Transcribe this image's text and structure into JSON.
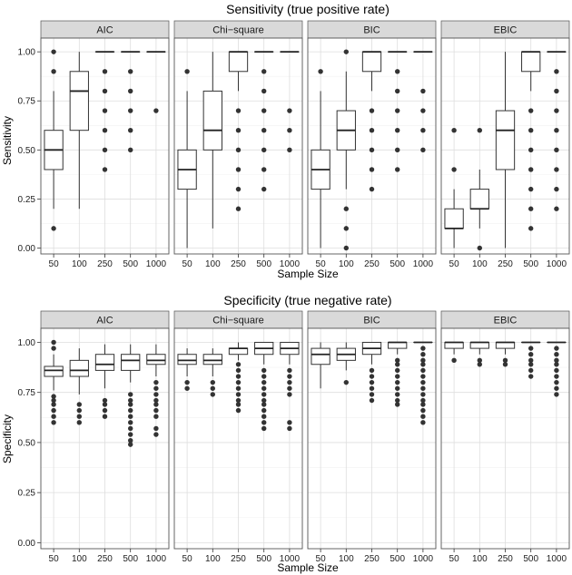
{
  "chart_data": [
    {
      "type": "boxplot",
      "title": "Sensitivity (true positive rate)",
      "xlabel": "Sample Size",
      "ylabel": "Sensitivity",
      "ylim": [
        -0.03,
        1.07
      ],
      "yticks": [
        "0.00",
        "0.25",
        "0.50",
        "0.75",
        "1.00"
      ],
      "categories": [
        "50",
        "100",
        "250",
        "500",
        "1000"
      ],
      "grid": true,
      "facets": [
        {
          "label": "AIC",
          "boxes": [
            {
              "q1": 0.4,
              "median": 0.5,
              "q3": 0.6,
              "lo": 0.2,
              "hi": 0.8,
              "outliers": [
                0.1,
                0.9,
                1.0
              ]
            },
            {
              "q1": 0.6,
              "median": 0.8,
              "q3": 0.9,
              "lo": 0.2,
              "hi": 1.0,
              "outliers": []
            },
            {
              "q1": 1.0,
              "median": 1.0,
              "q3": 1.0,
              "lo": 1.0,
              "hi": 1.0,
              "outliers": [
                0.4,
                0.5,
                0.6,
                0.7,
                0.8,
                0.9
              ]
            },
            {
              "q1": 1.0,
              "median": 1.0,
              "q3": 1.0,
              "lo": 1.0,
              "hi": 1.0,
              "outliers": [
                0.5,
                0.6,
                0.7,
                0.8,
                0.9
              ]
            },
            {
              "q1": 1.0,
              "median": 1.0,
              "q3": 1.0,
              "lo": 1.0,
              "hi": 1.0,
              "outliers": [
                0.7
              ]
            }
          ]
        },
        {
          "label": "Chi−square",
          "boxes": [
            {
              "q1": 0.3,
              "median": 0.4,
              "q3": 0.5,
              "lo": 0.0,
              "hi": 0.8,
              "outliers": [
                0.9
              ]
            },
            {
              "q1": 0.5,
              "median": 0.6,
              "q3": 0.8,
              "lo": 0.1,
              "hi": 1.0,
              "outliers": []
            },
            {
              "q1": 0.9,
              "median": 1.0,
              "q3": 1.0,
              "lo": 0.8,
              "hi": 1.0,
              "outliers": [
                0.2,
                0.3,
                0.4,
                0.5,
                0.6,
                0.7
              ]
            },
            {
              "q1": 1.0,
              "median": 1.0,
              "q3": 1.0,
              "lo": 1.0,
              "hi": 1.0,
              "outliers": [
                0.3,
                0.4,
                0.5,
                0.6,
                0.7,
                0.8,
                0.9
              ]
            },
            {
              "q1": 1.0,
              "median": 1.0,
              "q3": 1.0,
              "lo": 1.0,
              "hi": 1.0,
              "outliers": [
                0.5,
                0.6,
                0.7
              ]
            }
          ]
        },
        {
          "label": "BIC",
          "boxes": [
            {
              "q1": 0.3,
              "median": 0.4,
              "q3": 0.5,
              "lo": 0.0,
              "hi": 0.8,
              "outliers": [
                0.9
              ]
            },
            {
              "q1": 0.5,
              "median": 0.6,
              "q3": 0.7,
              "lo": 0.3,
              "hi": 0.9,
              "outliers": [
                0.0,
                0.1,
                0.2,
                1.0
              ]
            },
            {
              "q1": 0.9,
              "median": 1.0,
              "q3": 1.0,
              "lo": 0.8,
              "hi": 1.0,
              "outliers": [
                0.3,
                0.4,
                0.5,
                0.6,
                0.7
              ]
            },
            {
              "q1": 1.0,
              "median": 1.0,
              "q3": 1.0,
              "lo": 1.0,
              "hi": 1.0,
              "outliers": [
                0.4,
                0.5,
                0.6,
                0.7,
                0.8,
                0.9
              ]
            },
            {
              "q1": 1.0,
              "median": 1.0,
              "q3": 1.0,
              "lo": 1.0,
              "hi": 1.0,
              "outliers": [
                0.5,
                0.6,
                0.7,
                0.8
              ]
            }
          ]
        },
        {
          "label": "EBIC",
          "boxes": [
            {
              "q1": 0.1,
              "median": 0.1,
              "q3": 0.2,
              "lo": 0.0,
              "hi": 0.3,
              "outliers": [
                0.4,
                0.6
              ]
            },
            {
              "q1": 0.2,
              "median": 0.2,
              "q3": 0.3,
              "lo": 0.1,
              "hi": 0.4,
              "outliers": [
                0.0,
                0.6
              ]
            },
            {
              "q1": 0.4,
              "median": 0.6,
              "q3": 0.7,
              "lo": 0.0,
              "hi": 1.0,
              "outliers": []
            },
            {
              "q1": 0.9,
              "median": 1.0,
              "q3": 1.0,
              "lo": 0.8,
              "hi": 1.0,
              "outliers": [
                0.1,
                0.2,
                0.3,
                0.4,
                0.5,
                0.6,
                0.7
              ]
            },
            {
              "q1": 1.0,
              "median": 1.0,
              "q3": 1.0,
              "lo": 1.0,
              "hi": 1.0,
              "outliers": [
                0.2,
                0.3,
                0.4,
                0.5,
                0.6,
                0.7,
                0.8,
                0.9
              ]
            }
          ]
        }
      ]
    },
    {
      "type": "boxplot",
      "title": "Specificity (true negative rate)",
      "xlabel": "Sample Size",
      "ylabel": "Specificity",
      "ylim": [
        -0.03,
        1.07
      ],
      "yticks": [
        "0.00",
        "0.25",
        "0.50",
        "0.75",
        "1.00"
      ],
      "categories": [
        "50",
        "100",
        "250",
        "500",
        "1000"
      ],
      "grid": true,
      "facets": [
        {
          "label": "AIC",
          "boxes": [
            {
              "q1": 0.83,
              "median": 0.86,
              "q3": 0.88,
              "lo": 0.76,
              "hi": 0.94,
              "outliers": [
                0.6,
                0.63,
                0.66,
                0.69,
                0.71,
                0.73,
                0.97,
                1.0
              ]
            },
            {
              "q1": 0.83,
              "median": 0.86,
              "q3": 0.91,
              "lo": 0.74,
              "hi": 0.97,
              "outliers": [
                0.6,
                0.63,
                0.66,
                0.69
              ]
            },
            {
              "q1": 0.86,
              "median": 0.89,
              "q3": 0.94,
              "lo": 0.77,
              "hi": 0.99,
              "outliers": [
                0.63,
                0.66,
                0.69,
                0.71
              ]
            },
            {
              "q1": 0.86,
              "median": 0.91,
              "q3": 0.94,
              "lo": 0.8,
              "hi": 0.99,
              "outliers": [
                0.49,
                0.51,
                0.54,
                0.57,
                0.6,
                0.63,
                0.66,
                0.69,
                0.71,
                0.74
              ]
            },
            {
              "q1": 0.89,
              "median": 0.91,
              "q3": 0.94,
              "lo": 0.83,
              "hi": 0.99,
              "outliers": [
                0.54,
                0.57,
                0.63,
                0.66,
                0.69,
                0.71,
                0.74,
                0.77,
                0.8
              ]
            }
          ]
        },
        {
          "label": "Chi−square",
          "boxes": [
            {
              "q1": 0.89,
              "median": 0.91,
              "q3": 0.94,
              "lo": 0.83,
              "hi": 0.97,
              "outliers": [
                0.77,
                0.8
              ]
            },
            {
              "q1": 0.89,
              "median": 0.91,
              "q3": 0.94,
              "lo": 0.83,
              "hi": 0.97,
              "outliers": [
                0.74,
                0.77,
                0.8
              ]
            },
            {
              "q1": 0.94,
              "median": 0.97,
              "q3": 0.97,
              "lo": 0.91,
              "hi": 1.0,
              "outliers": [
                0.66,
                0.69,
                0.71,
                0.74,
                0.77,
                0.8,
                0.83,
                0.86,
                0.89
              ]
            },
            {
              "q1": 0.94,
              "median": 0.97,
              "q3": 1.0,
              "lo": 0.89,
              "hi": 1.0,
              "outliers": [
                0.57,
                0.6,
                0.63,
                0.66,
                0.69,
                0.71,
                0.74,
                0.77,
                0.8,
                0.83,
                0.86
              ]
            },
            {
              "q1": 0.94,
              "median": 0.97,
              "q3": 1.0,
              "lo": 0.89,
              "hi": 1.0,
              "outliers": [
                0.57,
                0.6,
                0.74,
                0.77,
                0.8,
                0.83,
                0.86
              ]
            }
          ]
        },
        {
          "label": "BIC",
          "boxes": [
            {
              "q1": 0.89,
              "median": 0.94,
              "q3": 0.97,
              "lo": 0.77,
              "hi": 1.0,
              "outliers": []
            },
            {
              "q1": 0.91,
              "median": 0.94,
              "q3": 0.97,
              "lo": 0.86,
              "hi": 1.0,
              "outliers": [
                0.8
              ]
            },
            {
              "q1": 0.94,
              "median": 0.97,
              "q3": 1.0,
              "lo": 0.89,
              "hi": 1.0,
              "outliers": [
                0.71,
                0.74,
                0.77,
                0.8,
                0.83,
                0.86
              ]
            },
            {
              "q1": 0.97,
              "median": 1.0,
              "q3": 1.0,
              "lo": 0.94,
              "hi": 1.0,
              "outliers": [
                0.69,
                0.71,
                0.74,
                0.77,
                0.8,
                0.83,
                0.86,
                0.89,
                0.91
              ]
            },
            {
              "q1": 1.0,
              "median": 1.0,
              "q3": 1.0,
              "lo": 1.0,
              "hi": 1.0,
              "outliers": [
                0.6,
                0.63,
                0.66,
                0.69,
                0.71,
                0.74,
                0.77,
                0.8,
                0.83,
                0.86,
                0.89,
                0.91,
                0.94,
                0.97
              ]
            }
          ]
        },
        {
          "label": "EBIC",
          "boxes": [
            {
              "q1": 0.97,
              "median": 1.0,
              "q3": 1.0,
              "lo": 0.94,
              "hi": 1.0,
              "outliers": [
                0.91
              ]
            },
            {
              "q1": 0.97,
              "median": 1.0,
              "q3": 1.0,
              "lo": 0.94,
              "hi": 1.0,
              "outliers": [
                0.89,
                0.91
              ]
            },
            {
              "q1": 0.97,
              "median": 1.0,
              "q3": 1.0,
              "lo": 0.94,
              "hi": 1.0,
              "outliers": [
                0.89,
                0.91
              ]
            },
            {
              "q1": 1.0,
              "median": 1.0,
              "q3": 1.0,
              "lo": 1.0,
              "hi": 1.0,
              "outliers": [
                0.83,
                0.86,
                0.89,
                0.91,
                0.94,
                0.97
              ]
            },
            {
              "q1": 1.0,
              "median": 1.0,
              "q3": 1.0,
              "lo": 1.0,
              "hi": 1.0,
              "outliers": [
                0.74,
                0.77,
                0.8,
                0.83,
                0.86,
                0.89,
                0.91,
                0.94,
                0.97
              ]
            }
          ]
        }
      ]
    }
  ]
}
